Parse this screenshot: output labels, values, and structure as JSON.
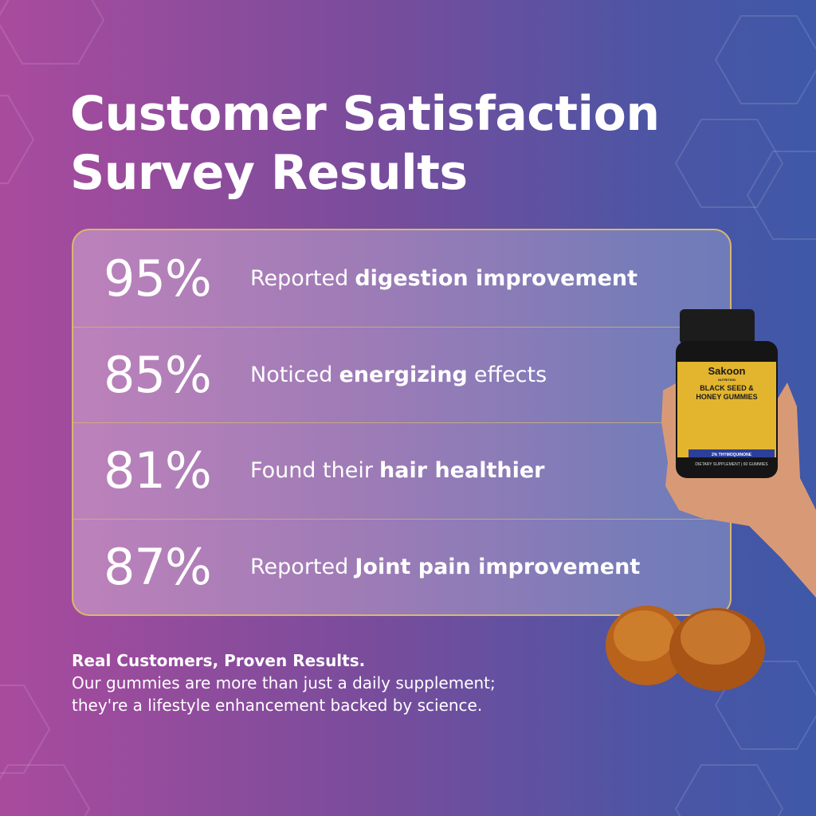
{
  "title": "Customer Satisfaction Survey Results",
  "results": [
    {
      "value": "95%",
      "lead": "Reported",
      "bold": "digestion improvement"
    },
    {
      "value": "85%",
      "lead": "Noticed",
      "bold": "energizing",
      "tail": "effects"
    },
    {
      "value": "81%",
      "lead": "Found their",
      "bold": "hair healthier"
    },
    {
      "value": "87%",
      "lead": "Reported",
      "bold": "Joint pain improvement"
    }
  ],
  "footer": {
    "heading": "Real Customers, Proven Results.",
    "lines": [
      "Our gummies are more than just a daily supplement;",
      "they're a lifestyle enhancement backed by science."
    ]
  },
  "product": {
    "brand": "Sakoon",
    "sub": "NUTRITION",
    "name": [
      "BLACK SEED &",
      "HONEY GUMMIES"
    ],
    "strength": "2% THYMOQUINONE",
    "foot": "DIETARY SUPPLEMENT | 60 GUMMIES"
  }
}
